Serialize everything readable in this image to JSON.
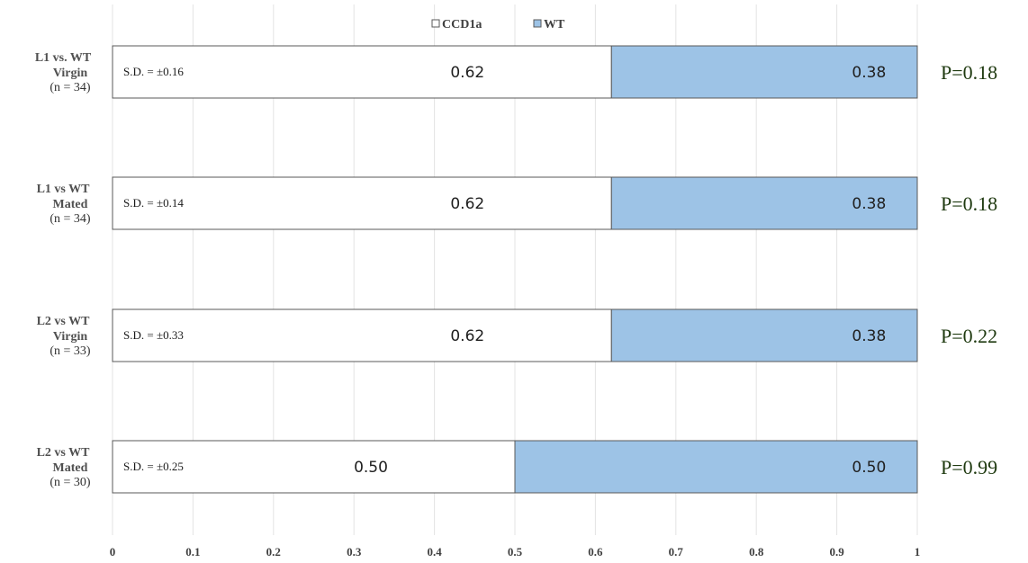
{
  "chart_data": {
    "type": "bar",
    "orientation": "horizontal",
    "stacked": true,
    "normalized": true,
    "categories": [
      {
        "line1": "L1 vs. WT",
        "line2": "Virgin",
        "line3": "(n = 34)"
      },
      {
        "line1": "L1 vs WT",
        "line2": "Mated",
        "line3": "(n = 34)"
      },
      {
        "line1": "L2 vs WT",
        "line2": "Virgin",
        "line3": "(n = 33)"
      },
      {
        "line1": "L2 vs WT",
        "line2": "Mated",
        "line3": "(n = 30)"
      }
    ],
    "series": [
      {
        "name": "CCD1a",
        "color": "#ffffff",
        "values": [
          0.62,
          0.62,
          0.62,
          0.5
        ],
        "labels": [
          "0.62",
          "0.62",
          "0.62",
          "0.50"
        ]
      },
      {
        "name": "WT",
        "color": "#9dc3e6",
        "values": [
          0.38,
          0.38,
          0.38,
          0.5
        ],
        "labels": [
          "0.38",
          "0.38",
          "0.38",
          "0.50"
        ]
      }
    ],
    "sd_labels": [
      "S.D. = ±0.16",
      "S.D. = ±0.14",
      "S.D. = ±0.33",
      "S.D. = ±0.25"
    ],
    "p_values": [
      "P=0.18",
      "P=0.18",
      "P=0.22",
      "P=0.99"
    ],
    "x_ticks": [
      "0",
      "0.1",
      "0.2",
      "0.3",
      "0.4",
      "0.5",
      "0.6",
      "0.7",
      "0.8",
      "0.9",
      "1"
    ],
    "xlim": [
      0,
      1
    ],
    "grid": true,
    "legend_position": "top-center"
  }
}
